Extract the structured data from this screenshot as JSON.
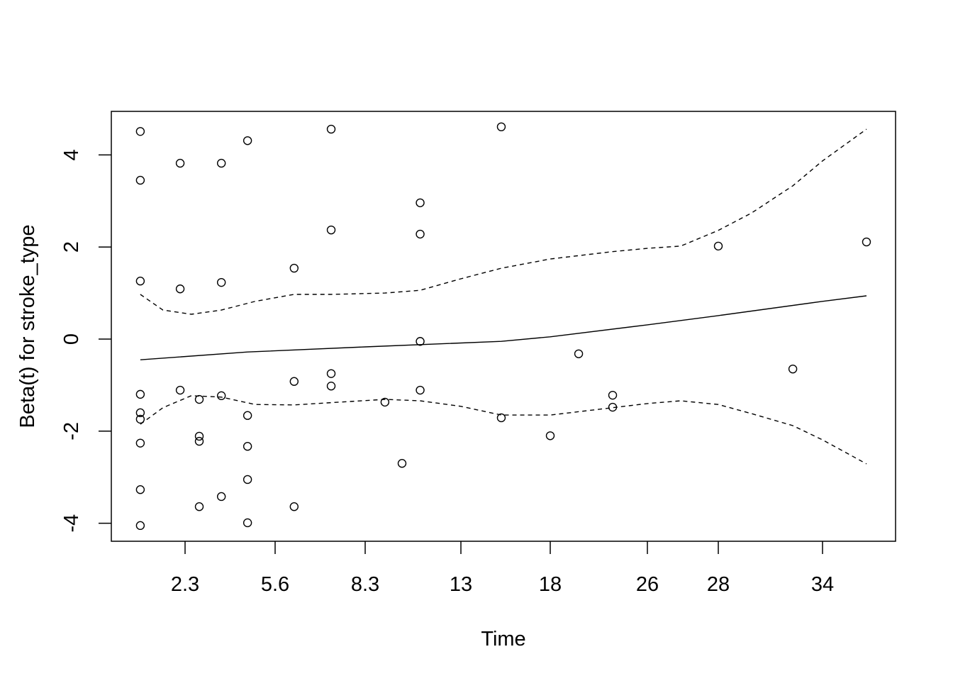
{
  "chart_data": {
    "type": "scatter",
    "title": "",
    "xlabel": "Time",
    "ylabel": "Beta(t) for stroke_type",
    "x_scale": "transformed (non-linear)",
    "x_ticks": [
      2.3,
      5.6,
      8.3,
      13,
      18,
      26,
      28,
      34
    ],
    "x_tick_labels": [
      "2.3",
      "5.6",
      "8.3",
      "13",
      "18",
      "26",
      "28",
      "34"
    ],
    "y_ticks": [
      -4,
      -2,
      0,
      2,
      4
    ],
    "y_tick_labels": [
      "-4",
      "-2",
      "0",
      "2",
      "4"
    ],
    "ylim": [
      -4.39,
      4.95
    ],
    "grid": false,
    "points": [
      [
        0.66,
        4.51
      ],
      [
        0.66,
        3.45
      ],
      [
        0.66,
        1.26
      ],
      [
        0.66,
        -1.2
      ],
      [
        0.66,
        -1.6
      ],
      [
        0.66,
        -1.74
      ],
      [
        0.66,
        -2.26
      ],
      [
        0.66,
        -3.27
      ],
      [
        0.66,
        -4.05
      ],
      [
        2.12,
        3.82
      ],
      [
        2.12,
        1.09
      ],
      [
        2.12,
        -1.11
      ],
      [
        2.82,
        -1.31
      ],
      [
        2.82,
        -2.11
      ],
      [
        2.82,
        -2.22
      ],
      [
        2.82,
        -3.64
      ],
      [
        3.63,
        3.82
      ],
      [
        3.63,
        1.23
      ],
      [
        3.63,
        -1.23
      ],
      [
        3.63,
        -3.42
      ],
      [
        4.59,
        4.31
      ],
      [
        4.59,
        -1.66
      ],
      [
        4.59,
        -2.33
      ],
      [
        4.59,
        -3.05
      ],
      [
        4.59,
        -3.99
      ],
      [
        6.17,
        1.54
      ],
      [
        6.17,
        -0.92
      ],
      [
        6.17,
        -3.64
      ],
      [
        7.28,
        4.56
      ],
      [
        7.28,
        2.37
      ],
      [
        7.28,
        -0.75
      ],
      [
        7.28,
        -1.02
      ],
      [
        9.27,
        -1.37
      ],
      [
        10.11,
        -2.7
      ],
      [
        11.0,
        2.96
      ],
      [
        11.0,
        2.28
      ],
      [
        11.0,
        -0.05
      ],
      [
        11.0,
        -1.11
      ],
      [
        15.26,
        4.61
      ],
      [
        15.26,
        -1.71
      ],
      [
        18,
        -2.1
      ],
      [
        20.34,
        -0.32
      ],
      [
        23.14,
        -1.22
      ],
      [
        23.14,
        -1.48
      ],
      [
        28,
        2.02
      ],
      [
        32.29,
        -0.65
      ],
      [
        36.53,
        2.11
      ]
    ],
    "fit": [
      [
        0.66,
        -0.45
      ],
      [
        4.59,
        -0.28
      ],
      [
        8.3,
        -0.17
      ],
      [
        15.26,
        -0.05
      ],
      [
        18,
        0.05
      ],
      [
        26,
        0.31
      ],
      [
        28,
        0.51
      ],
      [
        34,
        0.82
      ],
      [
        36.53,
        0.94
      ]
    ],
    "upper_ci": [
      [
        0.66,
        0.97
      ],
      [
        1.49,
        0.63
      ],
      [
        2.53,
        0.54
      ],
      [
        3.63,
        0.63
      ],
      [
        4.87,
        0.82
      ],
      [
        6.17,
        0.97
      ],
      [
        7.28,
        0.97
      ],
      [
        9.27,
        1.0
      ],
      [
        11.0,
        1.06
      ],
      [
        13,
        1.31
      ],
      [
        15.26,
        1.54
      ],
      [
        18,
        1.74
      ],
      [
        23.14,
        1.9
      ],
      [
        26,
        1.97
      ],
      [
        26.94,
        2.02
      ],
      [
        28,
        2.36
      ],
      [
        29.92,
        2.74
      ],
      [
        32.29,
        3.33
      ],
      [
        34,
        3.87
      ],
      [
        36.53,
        4.56
      ]
    ],
    "lower_ci": [
      [
        0.66,
        -1.85
      ],
      [
        1.49,
        -1.49
      ],
      [
        2.53,
        -1.23
      ],
      [
        3.63,
        -1.26
      ],
      [
        4.87,
        -1.42
      ],
      [
        6.17,
        -1.43
      ],
      [
        7.28,
        -1.38
      ],
      [
        9.27,
        -1.31
      ],
      [
        11.0,
        -1.34
      ],
      [
        13,
        -1.46
      ],
      [
        15.26,
        -1.65
      ],
      [
        18,
        -1.65
      ],
      [
        23.14,
        -1.49
      ],
      [
        26,
        -1.4
      ],
      [
        26.94,
        -1.34
      ],
      [
        28,
        -1.42
      ],
      [
        29.92,
        -1.62
      ],
      [
        32.29,
        -1.88
      ],
      [
        34,
        -2.19
      ],
      [
        36.53,
        -2.71
      ]
    ]
  }
}
